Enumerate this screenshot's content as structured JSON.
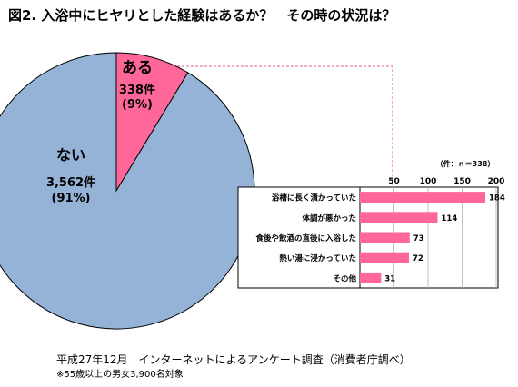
{
  "title": "図2.  入浴中にヒヤリとした経験はあるか？　その時の状況は？",
  "footnote": {
    "source": "平成27年12月　インターネットによるアンケート調査（消費者庁調べ）",
    "note": "※55歳以上の男女3,900名対象"
  },
  "colors": {
    "pie_yes": "#FF6699",
    "pie_no": "#95B3D7",
    "bar": "#FF6699",
    "connector": "#E06080",
    "grid": "#B0B0B0"
  },
  "chart_data": [
    {
      "type": "pie",
      "slices": [
        {
          "label": "ある",
          "value": 338,
          "count_text": "338件",
          "pct_text": "(9%)"
        },
        {
          "label": "ない",
          "value": 3562,
          "count_text": "3,562件",
          "pct_text": "(91%)"
        }
      ]
    },
    {
      "type": "bar",
      "orientation": "horizontal",
      "unit_note": "（件：ｎ＝338）",
      "categories": [
        "浴槽に長く漬かっていた",
        "体調が悪かった",
        "食後や飲酒の直後に入浴した",
        "熱い湯に浸かっていた",
        "その他"
      ],
      "values": [
        184,
        114,
        73,
        72,
        31
      ],
      "xlim": [
        0,
        200
      ],
      "xticks": [
        50,
        100,
        150,
        200
      ],
      "grid": true
    }
  ]
}
